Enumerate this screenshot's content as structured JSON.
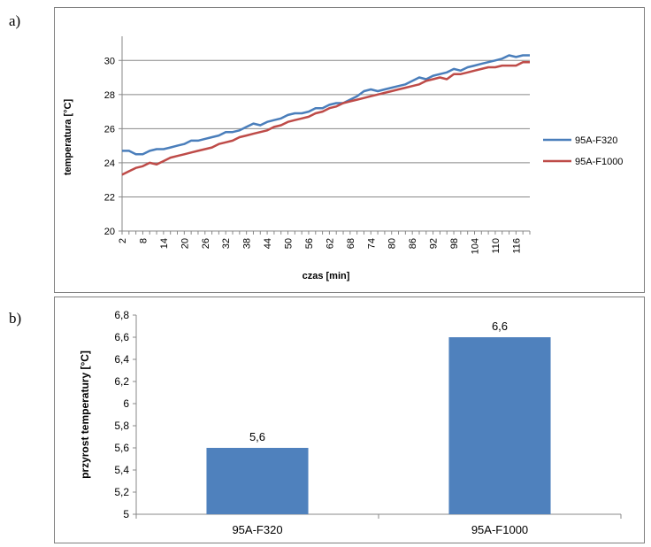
{
  "panel_labels": [
    "a)",
    "b)"
  ],
  "colors": {
    "series_a": "#4a7ebb",
    "series_b": "#be4b48",
    "bar": "#4f81bd",
    "grid": "#888888",
    "axis": "#888888"
  },
  "chart_data": [
    {
      "type": "line",
      "title": "",
      "xlabel": "czas [min]",
      "ylabel": "temperatura [°C]",
      "ylim": [
        20,
        31
      ],
      "yticks": [
        "20",
        "22",
        "24",
        "26",
        "28",
        "30"
      ],
      "xticks": [
        "2",
        "8",
        "14",
        "20",
        "26",
        "32",
        "38",
        "44",
        "50",
        "56",
        "62",
        "68",
        "74",
        "80",
        "86",
        "92",
        "98",
        "104",
        "110",
        "116"
      ],
      "grid": "horizontal",
      "legend": "right",
      "series": [
        {
          "name": "95A-F320",
          "x": [
            2,
            4,
            6,
            8,
            10,
            12,
            14,
            16,
            18,
            20,
            22,
            24,
            26,
            28,
            30,
            32,
            34,
            36,
            38,
            40,
            42,
            44,
            46,
            48,
            50,
            52,
            54,
            56,
            58,
            60,
            62,
            64,
            66,
            68,
            70,
            72,
            74,
            76,
            78,
            80,
            82,
            84,
            86,
            88,
            90,
            92,
            94,
            96,
            98,
            100,
            102,
            104,
            106,
            108,
            110,
            112,
            114,
            116,
            118,
            120
          ],
          "y": [
            24.7,
            24.7,
            24.5,
            24.5,
            24.7,
            24.8,
            24.8,
            24.9,
            25.0,
            25.1,
            25.3,
            25.3,
            25.4,
            25.5,
            25.6,
            25.8,
            25.8,
            25.9,
            26.1,
            26.3,
            26.2,
            26.4,
            26.5,
            26.6,
            26.8,
            26.9,
            26.9,
            27.0,
            27.2,
            27.2,
            27.4,
            27.5,
            27.5,
            27.7,
            27.9,
            28.2,
            28.3,
            28.2,
            28.3,
            28.4,
            28.5,
            28.6,
            28.8,
            29.0,
            28.9,
            29.1,
            29.2,
            29.3,
            29.5,
            29.4,
            29.6,
            29.7,
            29.8,
            29.9,
            30.0,
            30.1,
            30.3,
            30.2,
            30.3,
            30.3
          ]
        },
        {
          "name": "95A-F1000",
          "x": [
            2,
            4,
            6,
            8,
            10,
            12,
            14,
            16,
            18,
            20,
            22,
            24,
            26,
            28,
            30,
            32,
            34,
            36,
            38,
            40,
            42,
            44,
            46,
            48,
            50,
            52,
            54,
            56,
            58,
            60,
            62,
            64,
            66,
            68,
            70,
            72,
            74,
            76,
            78,
            80,
            82,
            84,
            86,
            88,
            90,
            92,
            94,
            96,
            98,
            100,
            102,
            104,
            106,
            108,
            110,
            112,
            114,
            116,
            118,
            120
          ],
          "y": [
            23.3,
            23.5,
            23.7,
            23.8,
            24.0,
            23.9,
            24.1,
            24.3,
            24.4,
            24.5,
            24.6,
            24.7,
            24.8,
            24.9,
            25.1,
            25.2,
            25.3,
            25.5,
            25.6,
            25.7,
            25.8,
            25.9,
            26.1,
            26.2,
            26.4,
            26.5,
            26.6,
            26.7,
            26.9,
            27.0,
            27.2,
            27.3,
            27.5,
            27.6,
            27.7,
            27.8,
            27.9,
            28.0,
            28.1,
            28.2,
            28.3,
            28.4,
            28.5,
            28.6,
            28.8,
            28.9,
            29.0,
            28.9,
            29.2,
            29.2,
            29.3,
            29.4,
            29.5,
            29.6,
            29.6,
            29.7,
            29.7,
            29.7,
            29.9,
            29.9
          ]
        }
      ]
    },
    {
      "type": "bar",
      "title": "",
      "xlabel": "",
      "ylabel": "przyrost temperatury [°C]",
      "ylim": [
        5,
        6.8
      ],
      "yticks": [
        "5",
        "5,2",
        "5,4",
        "5,6",
        "5,8",
        "6",
        "6,2",
        "6,4",
        "6,6",
        "6,8"
      ],
      "categories": [
        "95A-F320",
        "95A-F1000"
      ],
      "values": [
        5.6,
        6.6
      ],
      "data_labels": [
        "5,6",
        "6,6"
      ],
      "grid": "none"
    }
  ]
}
